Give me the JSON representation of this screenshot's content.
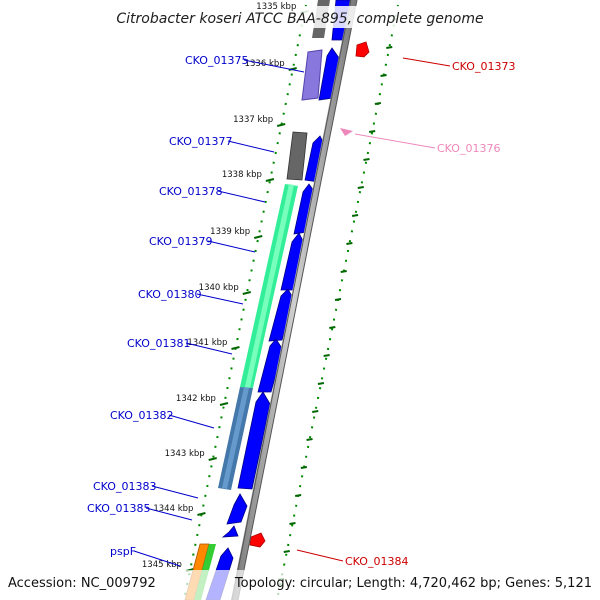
{
  "title": "Citrobacter koseri ATCC BAA-895, complete genome",
  "footer": {
    "accession": "Accession: NC_009792",
    "summary": "Topology: circular; Length: 4,720,462 bp; Genes: 5,121"
  },
  "colors": {
    "cds_forward": "#0000ff",
    "cds_reverse": "#ff0000",
    "label_left": "#0000cc",
    "label_right": "#cc0000",
    "label_faint": "#ee88bb",
    "tick": "#008800",
    "backbone": "#888888"
  },
  "ruler": [
    {
      "label": "1335 kbp"
    },
    {
      "label": "1336 kbp"
    },
    {
      "label": "1337 kbp"
    },
    {
      "label": "1338 kbp"
    },
    {
      "label": "1339 kbp"
    },
    {
      "label": "1340 kbp"
    },
    {
      "label": "1341 kbp"
    },
    {
      "label": "1342 kbp"
    },
    {
      "label": "1343 kbp"
    },
    {
      "label": "1344 kbp"
    },
    {
      "label": "1345 kbp"
    }
  ],
  "labels_left": [
    {
      "text": "CKO_01375"
    },
    {
      "text": "CKO_01377"
    },
    {
      "text": "CKO_01378"
    },
    {
      "text": "CKO_01379"
    },
    {
      "text": "CKO_01380"
    },
    {
      "text": "CKO_01381"
    },
    {
      "text": "CKO_01382"
    },
    {
      "text": "CKO_01383"
    },
    {
      "text": "CKO_01385"
    },
    {
      "text": "pspF"
    }
  ],
  "labels_right": [
    {
      "text": "CKO_01373"
    },
    {
      "text": "CKO_01376"
    },
    {
      "text": "CKO_01384"
    }
  ]
}
